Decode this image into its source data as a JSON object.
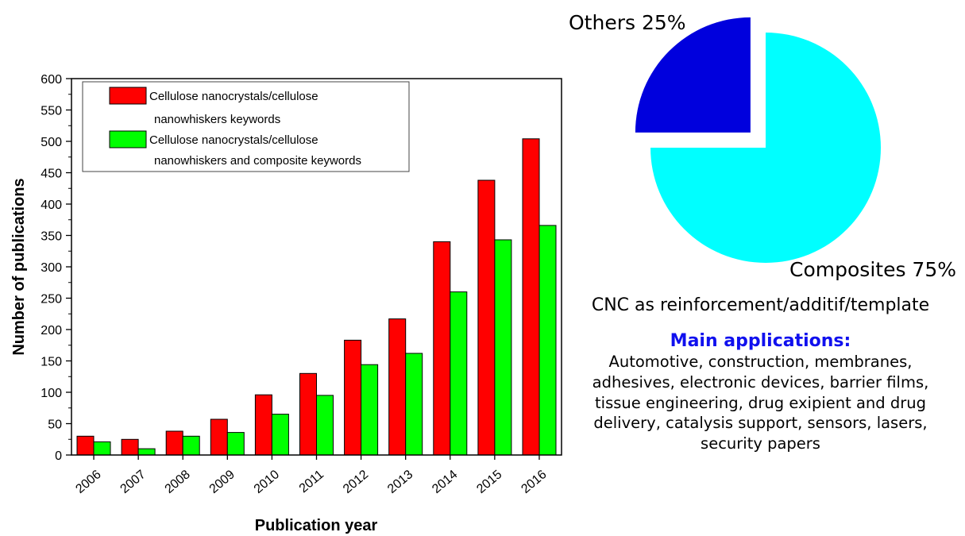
{
  "chart_data": [
    {
      "type": "bar",
      "title": "",
      "xlabel": "Publication year",
      "ylabel": "Number of publications",
      "ylim": [
        0,
        600
      ],
      "yticks": [
        0,
        50,
        100,
        150,
        200,
        250,
        300,
        350,
        400,
        450,
        500,
        550,
        600
      ],
      "categories": [
        "2006",
        "2007",
        "2008",
        "2009",
        "2010",
        "2011",
        "2012",
        "2013",
        "2014",
        "2015",
        "2016"
      ],
      "legend_position": "top-left",
      "grid": false,
      "series": [
        {
          "name": "Cellulose nanocrystals/cellulose nanowhiskers keywords",
          "legend_lines": [
            "Cellulose nanocrystals/cellulose",
            "nanowhiskers keywords"
          ],
          "color": "#ff0000",
          "values": [
            30,
            25,
            38,
            57,
            96,
            130,
            183,
            217,
            340,
            438,
            504
          ]
        },
        {
          "name": "Cellulose nanocrystals/cellulose nanowhiskers and composite keywords",
          "legend_lines": [
            "Cellulose nanocrystals/cellulose",
            "nanowhiskers and composite keywords"
          ],
          "color": "#00ff00",
          "values": [
            21,
            10,
            30,
            36,
            65,
            95,
            144,
            162,
            260,
            343,
            366
          ]
        }
      ]
    },
    {
      "type": "pie",
      "title": "",
      "slices": [
        {
          "label": "Composites 75%",
          "value": 75,
          "color": "#00ffff",
          "exploded": false
        },
        {
          "label": "Others 25%",
          "value": 25,
          "color": "#0000dd",
          "exploded": true
        }
      ]
    }
  ],
  "text": {
    "subtitle": "CNC as reinforcement/additif/template",
    "applications_heading": "Main applications:",
    "applications_lines": [
      "Automotive, construction, membranes,",
      "adhesives, electronic devices, barrier films,",
      "tissue engineering, drug exipient and drug",
      "delivery, catalysis support, sensors, lasers,",
      "security papers"
    ]
  },
  "colors": {
    "heading_blue": "#1010ee",
    "bar_red": "#ff0000",
    "bar_green": "#00ff00",
    "pie_cyan": "#00ffff",
    "pie_blue": "#0000dd"
  }
}
